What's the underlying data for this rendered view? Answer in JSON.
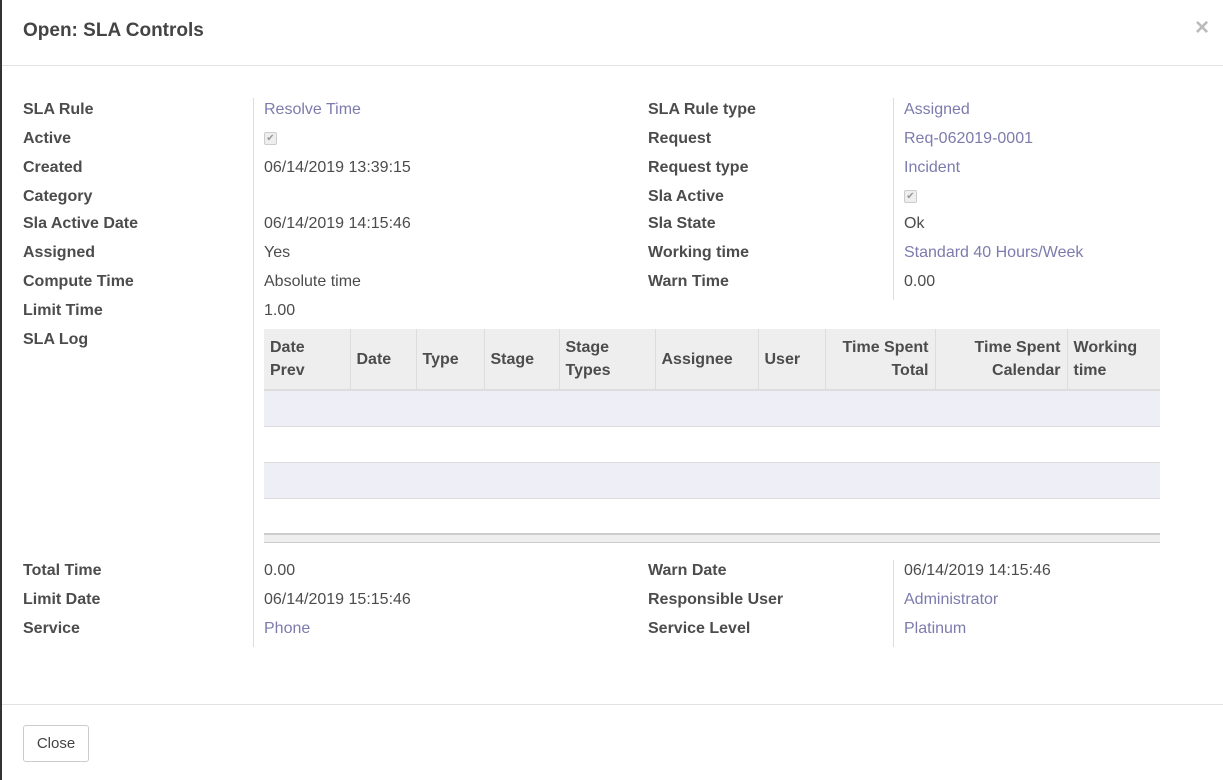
{
  "dialog": {
    "title": "Open: SLA Controls",
    "close_button": "Close"
  },
  "left_fields": [
    {
      "label": "SLA Rule",
      "value": "Resolve Time",
      "link": true
    },
    {
      "label": "Active",
      "checkbox": true,
      "checked": true
    },
    {
      "label": "Created",
      "value": "06/14/2019 13:39:15"
    },
    {
      "label": "Category",
      "value": ""
    },
    {
      "label": "Sla Active Date",
      "value": "06/14/2019 14:15:46"
    },
    {
      "label": "Assigned",
      "value": "Yes"
    },
    {
      "label": "Compute Time",
      "value": "Absolute time"
    },
    {
      "label": "Limit Time",
      "value": "1.00"
    },
    {
      "label": "SLA Log"
    }
  ],
  "right_fields": [
    {
      "label": "SLA Rule type",
      "value": "Assigned",
      "link": true
    },
    {
      "label": "Request",
      "value": "Req-062019-0001",
      "link": true
    },
    {
      "label": "Request type",
      "value": "Incident",
      "link": true
    },
    {
      "label": "Sla Active",
      "checkbox": true,
      "checked": true
    },
    {
      "label": "Sla State",
      "value": "Ok"
    },
    {
      "label": "Working time",
      "value": "Standard 40 Hours/Week",
      "link": true
    },
    {
      "label": "Warn Time",
      "value": "0.00"
    }
  ],
  "sla_log": {
    "columns": [
      "Date Prev",
      "Date",
      "Type",
      "Stage",
      "Stage Types",
      "Assignee",
      "User",
      "Time Spent Total",
      "Time Spent Calendar",
      "Working time"
    ],
    "rows": []
  },
  "bottom_left": [
    {
      "label": "Total Time",
      "value": "0.00"
    },
    {
      "label": "Limit Date",
      "value": "06/14/2019 15:15:46"
    },
    {
      "label": "Service",
      "value": "Phone",
      "link": true
    }
  ],
  "bottom_right": [
    {
      "label": "Warn Date",
      "value": "06/14/2019 14:15:46"
    },
    {
      "label": "Responsible User",
      "value": "Administrator",
      "link": true
    },
    {
      "label": "Service Level",
      "value": "Platinum",
      "link": true
    }
  ],
  "colors": {
    "link": "#7c7bad",
    "row_stripe": "#eeeef7"
  }
}
